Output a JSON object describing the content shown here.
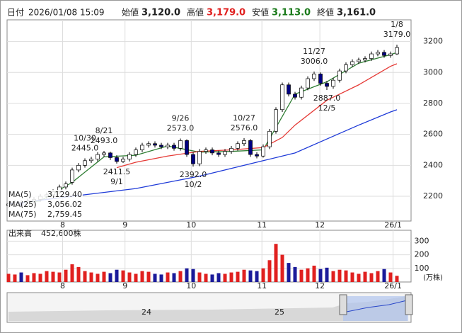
{
  "header": {
    "date_label": "日付",
    "date": "2026/01/08 15:09",
    "open_label": "始値",
    "open": "3,120.0",
    "high_label": "高値",
    "high": "3,179.0",
    "low_label": "安値",
    "low": "3,113.0",
    "close_label": "終値",
    "close": "3,161.0"
  },
  "chart_data": {
    "type": "candlestick",
    "ylim": [
      2040,
      3340
    ],
    "yticks": [
      2200,
      2400,
      2600,
      2800,
      3000,
      3200
    ],
    "grid": true,
    "xticks": [
      {
        "value": 8.5,
        "label": "8"
      },
      {
        "value": 18.3,
        "label": "9"
      },
      {
        "value": 28.7,
        "label": "10"
      },
      {
        "value": 39.8,
        "label": "11"
      },
      {
        "value": 48.9,
        "label": "12"
      },
      {
        "value": 60.4,
        "label": "26/1"
      }
    ],
    "up_color": "#ffffff",
    "down_color": "#000080",
    "open": [
      2140,
      2150,
      2160,
      2140,
      2170,
      2180,
      2200,
      2210,
      2230,
      2260,
      2290,
      2370,
      2400,
      2430,
      2440,
      2470,
      2480,
      2450,
      2425,
      2440,
      2470,
      2500,
      2530,
      2540,
      2530,
      2520,
      2530,
      2510,
      2560,
      2470,
      2410,
      2490,
      2500,
      2480,
      2470,
      2490,
      2510,
      2540,
      2560,
      2470,
      2460,
      2520,
      2620,
      2760,
      2920,
      2860,
      2840,
      2900,
      2960,
      2990,
      2930,
      2910,
      2950,
      3010,
      3050,
      3070,
      3080,
      3090,
      3120,
      3130,
      3110,
      3120
    ],
    "high": [
      2165,
      2175,
      2175,
      2185,
      2195,
      2215,
      2225,
      2245,
      2275,
      2295,
      2385,
      2415,
      2445,
      2455,
      2485,
      2493,
      2488,
      2465,
      2455,
      2485,
      2515,
      2545,
      2555,
      2555,
      2545,
      2545,
      2545,
      2573,
      2568,
      2485,
      2505,
      2515,
      2515,
      2495,
      2505,
      2525,
      2555,
      2576,
      2570,
      2485,
      2535,
      2635,
      2775,
      2935,
      2935,
      2875,
      2915,
      2975,
      3006,
      3000,
      2945,
      2965,
      3025,
      3065,
      3085,
      3095,
      3105,
      3135,
      3145,
      3145,
      3135,
      3179
    ],
    "low": [
      2125,
      2135,
      2125,
      2125,
      2155,
      2165,
      2185,
      2195,
      2215,
      2245,
      2275,
      2355,
      2385,
      2415,
      2425,
      2455,
      2435,
      2411.5,
      2415,
      2425,
      2455,
      2485,
      2515,
      2515,
      2505,
      2505,
      2495,
      2495,
      2455,
      2392,
      2395,
      2475,
      2465,
      2455,
      2455,
      2475,
      2495,
      2525,
      2455,
      2445,
      2450,
      2505,
      2605,
      2745,
      2845,
      2825,
      2825,
      2885,
      2945,
      2915,
      2887,
      2895,
      2935,
      2995,
      3035,
      3055,
      3065,
      3075,
      3105,
      3095,
      3095,
      3113
    ],
    "close": [
      2150,
      2160,
      2140,
      2170,
      2180,
      2200,
      2210,
      2230,
      2260,
      2280,
      2370,
      2400,
      2430,
      2440,
      2470,
      2480,
      2450,
      2425,
      2440,
      2470,
      2500,
      2530,
      2540,
      2530,
      2520,
      2530,
      2510,
      2560,
      2470,
      2410,
      2490,
      2500,
      2480,
      2470,
      2490,
      2510,
      2540,
      2560,
      2470,
      2460,
      2520,
      2620,
      2760,
      2920,
      2860,
      2840,
      2900,
      2960,
      2990,
      2930,
      2910,
      2950,
      3010,
      3050,
      3070,
      3080,
      3090,
      3120,
      3130,
      3110,
      3120,
      3161
    ],
    "series": [
      {
        "name": "MA(5)",
        "color": "#2e7d32",
        "x": [
          0,
          5,
          10,
          15,
          20,
          25,
          30,
          35,
          40,
          45,
          50,
          55,
          60,
          61
        ],
        "values": [
          2150,
          2170,
          2290,
          2455,
          2465,
          2525,
          2485,
          2490,
          2500,
          2860,
          2940,
          3060,
          3115,
          3129.4
        ],
        "current": {
          "value": 3129.4,
          "label": "3,129.40"
        }
      },
      {
        "name": "MA(25)",
        "color": "#e53935",
        "x": [
          17,
          20,
          25,
          30,
          35,
          40,
          43,
          45,
          50,
          55,
          60,
          61
        ],
        "values": [
          2385,
          2420,
          2460,
          2490,
          2500,
          2515,
          2580,
          2660,
          2820,
          2920,
          3040,
          3056.02
        ],
        "current": {
          "value": 3056.02,
          "label": "3,056.02"
        }
      },
      {
        "name": "MA(75)",
        "color": "#1e3ad8",
        "x": [
          0,
          10,
          20,
          30,
          40,
          45,
          50,
          55,
          60,
          61
        ],
        "values": [
          2150,
          2200,
          2250,
          2330,
          2430,
          2480,
          2570,
          2660,
          2745,
          2759.45
        ],
        "current": {
          "value": 2759.45,
          "label": "2,759.45"
        }
      }
    ],
    "annotations": [
      {
        "date": "8/21",
        "value": 2493,
        "label": "2493.0"
      },
      {
        "date": "9/1",
        "value": 2411.5,
        "label": "2411.5"
      },
      {
        "date": "9/26",
        "value": 2573,
        "label": "2573.0"
      },
      {
        "date": "10/2",
        "value": 2392,
        "label": "2392.0"
      },
      {
        "date": "10/27",
        "value": 2576,
        "label": "2576.0"
      },
      {
        "date": "10/30",
        "value": 2445,
        "label": "2445.0"
      },
      {
        "date": "11/27",
        "value": 3006,
        "label": "3006.0"
      },
      {
        "date": "12/5",
        "value": 2887,
        "label": "2887.0"
      },
      {
        "date": "1/8",
        "value": 3179,
        "label": "3179.0"
      }
    ],
    "volume": {
      "title": "出来高",
      "current": "452,600株",
      "unit": "(万株)",
      "ylim": [
        0,
        380
      ],
      "yticks": [
        100,
        200,
        300
      ],
      "values": [
        60,
        55,
        70,
        50,
        65,
        60,
        80,
        75,
        70,
        90,
        130,
        110,
        80,
        70,
        60,
        75,
        65,
        90,
        85,
        70,
        60,
        80,
        75,
        60,
        55,
        70,
        65,
        80,
        100,
        95,
        70,
        60,
        55,
        65,
        60,
        70,
        75,
        90,
        85,
        80,
        100,
        160,
        280,
        200,
        140,
        110,
        90,
        100,
        120,
        95,
        105,
        80,
        90,
        85,
        70,
        60,
        75,
        65,
        80,
        95,
        70,
        45.26
      ],
      "up_color": "#e0201f",
      "down_color": "#1a1a9a"
    },
    "navigator": {
      "labels": [
        "24",
        "25"
      ]
    }
  }
}
